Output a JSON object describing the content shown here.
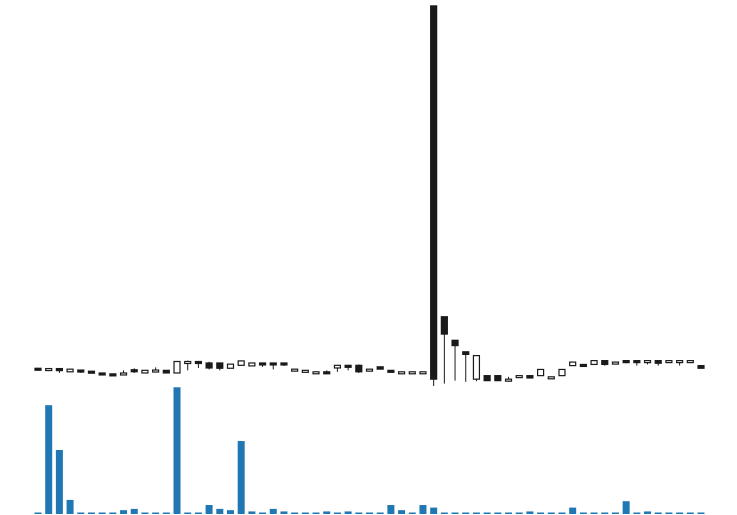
{
  "chart_data": {
    "type": "candlestick",
    "grid": false,
    "legend": "none",
    "axes_visible": false,
    "colors": {
      "up_fill": "#ffffff",
      "down_fill": "#1a1a1a",
      "candle_stroke": "#1a1a1a",
      "volume": "#1f77b4"
    },
    "price_range": [
      0,
      130
    ],
    "volume_range": [
      0,
      100
    ],
    "candles": [
      {
        "i": 0,
        "open": 5.0,
        "high": 5.0,
        "low": 4.6,
        "close": 4.6
      },
      {
        "i": 1,
        "open": 4.9,
        "high": 5.0,
        "low": 4.3,
        "close": 4.9
      },
      {
        "i": 2,
        "open": 4.9,
        "high": 4.9,
        "low": 3.4,
        "close": 4.2
      },
      {
        "i": 3,
        "open": 3.8,
        "high": 4.7,
        "low": 3.8,
        "close": 4.7
      },
      {
        "i": 4,
        "open": 4.4,
        "high": 4.4,
        "low": 3.4,
        "close": 4.1
      },
      {
        "i": 5,
        "open": 4.0,
        "high": 4.0,
        "low": 3.4,
        "close": 3.4
      },
      {
        "i": 6,
        "open": 3.4,
        "high": 3.4,
        "low": 3.1,
        "close": 3.1
      },
      {
        "i": 7,
        "open": 3.1,
        "high": 3.1,
        "low": 2.6,
        "close": 2.6
      },
      {
        "i": 8,
        "open": 3.4,
        "high": 4.3,
        "low": 2.9,
        "close": 3.4
      },
      {
        "i": 9,
        "open": 4.5,
        "high": 5.0,
        "low": 3.4,
        "close": 4.3
      },
      {
        "i": 10,
        "open": 3.4,
        "high": 4.3,
        "low": 3.4,
        "close": 4.3
      },
      {
        "i": 11,
        "open": 4.4,
        "high": 5.3,
        "low": 3.8,
        "close": 4.4
      },
      {
        "i": 12,
        "open": 4.3,
        "high": 4.3,
        "low": 3.4,
        "close": 3.4
      },
      {
        "i": 13,
        "open": 3.4,
        "high": 7.3,
        "low": 3.4,
        "close": 7.3
      },
      {
        "i": 14,
        "open": 7.3,
        "high": 7.6,
        "low": 4.3,
        "close": 7.3
      },
      {
        "i": 15,
        "open": 7.3,
        "high": 7.3,
        "low": 5.1,
        "close": 6.8
      },
      {
        "i": 16,
        "open": 6.8,
        "high": 7.2,
        "low": 4.6,
        "close": 5.1
      },
      {
        "i": 17,
        "open": 6.8,
        "high": 6.8,
        "low": 4.3,
        "close": 5.0
      },
      {
        "i": 18,
        "open": 5.0,
        "high": 6.4,
        "low": 5.0,
        "close": 6.4
      },
      {
        "i": 19,
        "open": 6.0,
        "high": 7.7,
        "low": 6.0,
        "close": 7.5
      },
      {
        "i": 20,
        "open": 5.8,
        "high": 6.8,
        "low": 5.8,
        "close": 6.8
      },
      {
        "i": 21,
        "open": 6.8,
        "high": 6.8,
        "low": 5.5,
        "close": 6.3
      },
      {
        "i": 22,
        "open": 6.8,
        "high": 6.8,
        "low": 4.6,
        "close": 6.3
      },
      {
        "i": 23,
        "open": 6.8,
        "high": 6.8,
        "low": 5.8,
        "close": 6.3
      },
      {
        "i": 24,
        "open": 4.7,
        "high": 4.7,
        "low": 4.7,
        "close": 4.7
      },
      {
        "i": 25,
        "open": 4.3,
        "high": 4.3,
        "low": 4.3,
        "close": 4.3
      },
      {
        "i": 26,
        "open": 3.8,
        "high": 3.8,
        "low": 3.8,
        "close": 3.8
      },
      {
        "i": 27,
        "open": 3.8,
        "high": 4.3,
        "low": 3.4,
        "close": 3.4
      },
      {
        "i": 28,
        "open": 5.1,
        "high": 6.0,
        "low": 3.8,
        "close": 6.0
      },
      {
        "i": 29,
        "open": 6.0,
        "high": 6.0,
        "low": 4.3,
        "close": 5.5
      },
      {
        "i": 30,
        "open": 6.0,
        "high": 6.3,
        "low": 3.4,
        "close": 3.8
      },
      {
        "i": 31,
        "open": 4.7,
        "high": 4.7,
        "low": 4.7,
        "close": 4.7
      },
      {
        "i": 32,
        "open": 5.5,
        "high": 5.5,
        "low": 4.7,
        "close": 4.7
      },
      {
        "i": 33,
        "open": 4.3,
        "high": 4.3,
        "low": 3.8,
        "close": 3.8
      },
      {
        "i": 34,
        "open": 3.8,
        "high": 3.8,
        "low": 3.8,
        "close": 3.8
      },
      {
        "i": 35,
        "open": 3.8,
        "high": 3.8,
        "low": 3.8,
        "close": 3.8
      },
      {
        "i": 36,
        "open": 3.8,
        "high": 3.8,
        "low": 3.8,
        "close": 3.8
      },
      {
        "i": 37,
        "open": 128.0,
        "high": 128.0,
        "low": -1.0,
        "close": 1.3
      },
      {
        "i": 38,
        "open": 22.5,
        "high": 22.5,
        "low": -0.2,
        "close": 16.6
      },
      {
        "i": 39,
        "open": 14.5,
        "high": 14.5,
        "low": 0.8,
        "close": 12.7
      },
      {
        "i": 40,
        "open": 10.6,
        "high": 10.6,
        "low": 0.4,
        "close": 9.7
      },
      {
        "i": 41,
        "open": 1.3,
        "high": 9.3,
        "low": 0.6,
        "close": 9.3
      },
      {
        "i": 42,
        "open": 2.5,
        "high": 2.5,
        "low": 0.8,
        "close": 0.8
      },
      {
        "i": 43,
        "open": 2.5,
        "high": 2.5,
        "low": 0.8,
        "close": 0.8
      },
      {
        "i": 44,
        "open": 1.3,
        "high": 2.1,
        "low": 0.4,
        "close": 1.3
      },
      {
        "i": 45,
        "open": 2.5,
        "high": 2.5,
        "low": 2.5,
        "close": 2.5
      },
      {
        "i": 46,
        "open": 2.5,
        "high": 2.5,
        "low": 1.7,
        "close": 1.7
      },
      {
        "i": 47,
        "open": 2.5,
        "high": 4.6,
        "low": 2.5,
        "close": 4.6
      },
      {
        "i": 48,
        "open": 2.1,
        "high": 2.1,
        "low": 2.1,
        "close": 2.1
      },
      {
        "i": 49,
        "open": 2.5,
        "high": 4.6,
        "low": 2.5,
        "close": 4.6
      },
      {
        "i": 50,
        "open": 5.9,
        "high": 7.1,
        "low": 5.9,
        "close": 7.1
      },
      {
        "i": 51,
        "open": 6.3,
        "high": 6.3,
        "low": 5.9,
        "close": 5.9
      },
      {
        "i": 52,
        "open": 6.3,
        "high": 7.6,
        "low": 6.3,
        "close": 7.6
      },
      {
        "i": 53,
        "open": 7.6,
        "high": 7.6,
        "low": 5.9,
        "close": 6.3
      },
      {
        "i": 54,
        "open": 7.1,
        "high": 7.1,
        "low": 7.1,
        "close": 7.1
      },
      {
        "i": 55,
        "open": 7.6,
        "high": 7.6,
        "low": 6.7,
        "close": 7.1
      },
      {
        "i": 56,
        "open": 7.6,
        "high": 7.6,
        "low": 5.9,
        "close": 7.1
      },
      {
        "i": 57,
        "open": 7.6,
        "high": 7.6,
        "low": 6.3,
        "close": 7.6
      },
      {
        "i": 58,
        "open": 7.6,
        "high": 7.6,
        "low": 5.9,
        "close": 6.7
      },
      {
        "i": 59,
        "open": 7.6,
        "high": 7.6,
        "low": 7.6,
        "close": 7.6
      },
      {
        "i": 60,
        "open": 7.6,
        "high": 7.6,
        "low": 5.9,
        "close": 7.6
      },
      {
        "i": 61,
        "open": 7.6,
        "high": 7.6,
        "low": 7.6,
        "close": 7.6
      },
      {
        "i": 62,
        "open": 5.9,
        "high": 5.9,
        "low": 5.0,
        "close": 5.0
      }
    ],
    "volume": [
      {
        "i": 0,
        "value": 1
      },
      {
        "i": 1,
        "value": 85
      },
      {
        "i": 2,
        "value": 50
      },
      {
        "i": 3,
        "value": 11
      },
      {
        "i": 4,
        "value": 1
      },
      {
        "i": 5,
        "value": 1
      },
      {
        "i": 6,
        "value": 1
      },
      {
        "i": 7,
        "value": 0
      },
      {
        "i": 8,
        "value": 3
      },
      {
        "i": 9,
        "value": 4
      },
      {
        "i": 10,
        "value": 0
      },
      {
        "i": 11,
        "value": 1
      },
      {
        "i": 12,
        "value": 0
      },
      {
        "i": 13,
        "value": 99
      },
      {
        "i": 14,
        "value": 1
      },
      {
        "i": 15,
        "value": 0
      },
      {
        "i": 16,
        "value": 7
      },
      {
        "i": 17,
        "value": 4
      },
      {
        "i": 18,
        "value": 3
      },
      {
        "i": 19,
        "value": 57
      },
      {
        "i": 20,
        "value": 2
      },
      {
        "i": 21,
        "value": 1
      },
      {
        "i": 22,
        "value": 4
      },
      {
        "i": 23,
        "value": 2
      },
      {
        "i": 24,
        "value": 1
      },
      {
        "i": 25,
        "value": 0
      },
      {
        "i": 26,
        "value": 1
      },
      {
        "i": 27,
        "value": 2
      },
      {
        "i": 28,
        "value": 1
      },
      {
        "i": 29,
        "value": 2
      },
      {
        "i": 30,
        "value": 1
      },
      {
        "i": 31,
        "value": 1
      },
      {
        "i": 32,
        "value": 1
      },
      {
        "i": 33,
        "value": 7
      },
      {
        "i": 34,
        "value": 3
      },
      {
        "i": 35,
        "value": 1
      },
      {
        "i": 36,
        "value": 7
      },
      {
        "i": 37,
        "value": 5
      },
      {
        "i": 38,
        "value": 0
      },
      {
        "i": 39,
        "value": 1
      },
      {
        "i": 40,
        "value": 1
      },
      {
        "i": 41,
        "value": 0
      },
      {
        "i": 42,
        "value": 1
      },
      {
        "i": 43,
        "value": 0
      },
      {
        "i": 44,
        "value": 1
      },
      {
        "i": 45,
        "value": 0
      },
      {
        "i": 46,
        "value": 2
      },
      {
        "i": 47,
        "value": 1
      },
      {
        "i": 48,
        "value": 0
      },
      {
        "i": 49,
        "value": 1
      },
      {
        "i": 50,
        "value": 5
      },
      {
        "i": 51,
        "value": 0
      },
      {
        "i": 52,
        "value": 1
      },
      {
        "i": 53,
        "value": 0
      },
      {
        "i": 54,
        "value": 1
      },
      {
        "i": 55,
        "value": 10
      },
      {
        "i": 56,
        "value": 0
      },
      {
        "i": 57,
        "value": 2
      },
      {
        "i": 58,
        "value": 1
      },
      {
        "i": 59,
        "value": 0
      },
      {
        "i": 60,
        "value": 1
      },
      {
        "i": 61,
        "value": 1
      },
      {
        "i": 62,
        "value": 0
      }
    ]
  }
}
